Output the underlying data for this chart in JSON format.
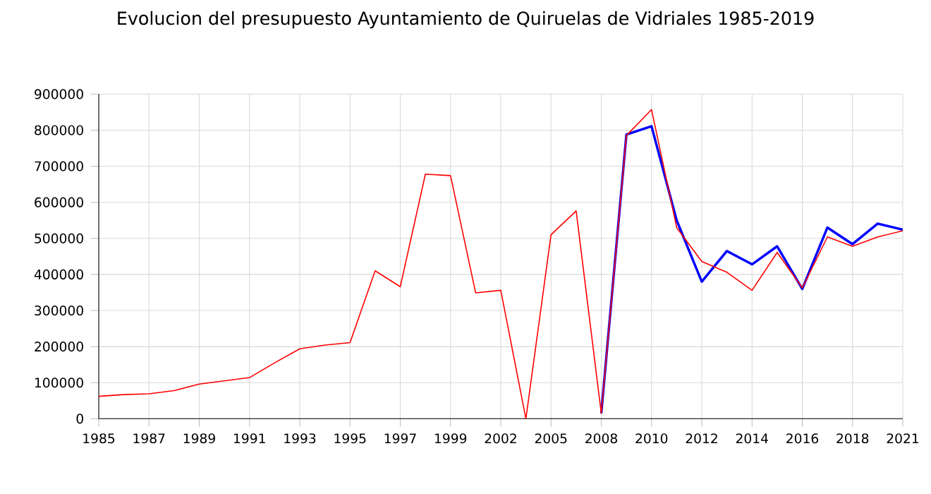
{
  "chart_data": {
    "type": "line",
    "title": "Evolucion del presupuesto Ayuntamiento de Quiruelas de Vidriales 1985-2019",
    "categories": [
      "1985",
      null,
      "1987",
      null,
      "1989",
      null,
      "1991",
      null,
      "1993",
      null,
      "1995",
      null,
      "1997",
      null,
      "1999",
      null,
      "2002",
      null,
      "2005",
      null,
      "2008",
      null,
      "2010",
      null,
      "2012",
      null,
      "2014",
      null,
      "2016",
      null,
      "2018",
      null,
      "2021"
    ],
    "series": [
      {
        "color": "#0000ff",
        "values": [
          null,
          null,
          null,
          null,
          null,
          null,
          null,
          null,
          null,
          null,
          null,
          null,
          null,
          null,
          null,
          null,
          null,
          null,
          null,
          null,
          15000,
          788000,
          811000,
          550000,
          380000,
          465000,
          428000,
          478000,
          360000,
          530000,
          484000,
          541000,
          524000
        ]
      },
      {
        "color": "#ff0000",
        "values": [
          62000,
          67000,
          69000,
          78000,
          96000,
          105000,
          114000,
          155000,
          194000,
          204000,
          211000,
          410000,
          366000,
          678000,
          674000,
          349000,
          356000,
          0,
          510000,
          576000,
          15000,
          785000,
          857000,
          530000,
          436000,
          406000,
          356000,
          461000,
          363000,
          504000,
          478000,
          504000,
          521000
        ]
      }
    ],
    "ylim": [
      0,
      900000
    ],
    "yticks": [
      0,
      100000,
      200000,
      300000,
      400000,
      500000,
      600000,
      700000,
      800000,
      900000
    ],
    "grid": true,
    "marker": "none",
    "line_style": "solid"
  }
}
